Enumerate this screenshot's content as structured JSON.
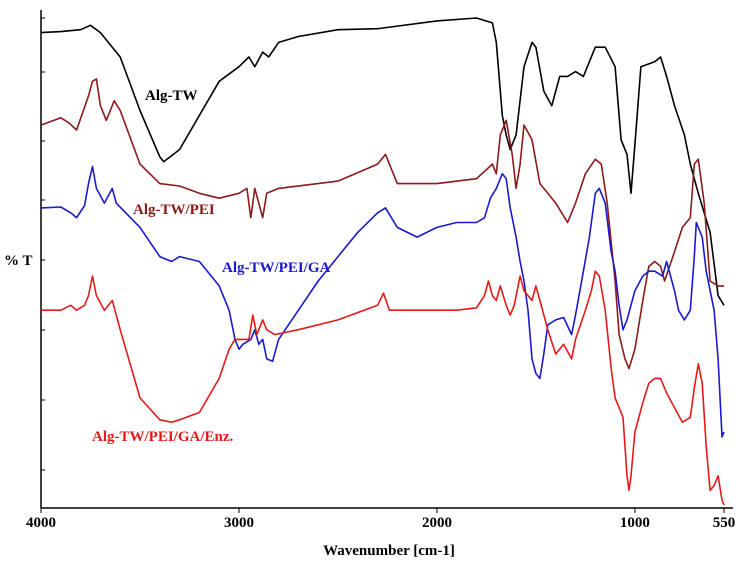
{
  "chart_data": {
    "type": "line",
    "title": "",
    "xlabel": "Wavenumber [cm-1]",
    "ylabel": "% T",
    "xlim": [
      4000,
      550
    ],
    "x_reversed": true,
    "ylim": [
      0,
      100
    ],
    "grid": false,
    "x_ticks": [
      {
        "value": 4000,
        "label": "4000"
      },
      {
        "value": 3000,
        "label": "3000"
      },
      {
        "value": 2000,
        "label": "2000"
      },
      {
        "value": 1000,
        "label": "1000"
      },
      {
        "value": 550,
        "label": "550"
      }
    ],
    "series": [
      {
        "name": "Alg-TW",
        "color": "#000000",
        "points": [
          [
            4000,
            97
          ],
          [
            3900,
            97.2
          ],
          [
            3800,
            97.6
          ],
          [
            3750,
            98.5
          ],
          [
            3700,
            97
          ],
          [
            3600,
            92
          ],
          [
            3500,
            81
          ],
          [
            3400,
            71.5
          ],
          [
            3380,
            70.5
          ],
          [
            3300,
            73
          ],
          [
            3200,
            80
          ],
          [
            3100,
            87
          ],
          [
            3000,
            90
          ],
          [
            2950,
            92
          ],
          [
            2920,
            90
          ],
          [
            2880,
            93
          ],
          [
            2850,
            92
          ],
          [
            2800,
            95
          ],
          [
            2700,
            96.2
          ],
          [
            2500,
            97.6
          ],
          [
            2300,
            97.8
          ],
          [
            2000,
            99.4
          ],
          [
            1800,
            100
          ],
          [
            1720,
            99
          ],
          [
            1700,
            95
          ],
          [
            1670,
            80
          ],
          [
            1650,
            76
          ],
          [
            1630,
            73
          ],
          [
            1600,
            76
          ],
          [
            1560,
            90
          ],
          [
            1520,
            95
          ],
          [
            1500,
            94
          ],
          [
            1460,
            85
          ],
          [
            1420,
            82
          ],
          [
            1380,
            88
          ],
          [
            1340,
            88
          ],
          [
            1300,
            89
          ],
          [
            1260,
            88
          ],
          [
            1200,
            94
          ],
          [
            1150,
            94
          ],
          [
            1100,
            90
          ],
          [
            1070,
            75
          ],
          [
            1040,
            72
          ],
          [
            1020,
            64
          ],
          [
            1000,
            74
          ],
          [
            970,
            90
          ],
          [
            900,
            91
          ],
          [
            870,
            92
          ],
          [
            840,
            88
          ],
          [
            800,
            82
          ],
          [
            750,
            76
          ],
          [
            720,
            70
          ],
          [
            680,
            64
          ],
          [
            620,
            56
          ],
          [
            580,
            43
          ],
          [
            550,
            41
          ]
        ]
      },
      {
        "name": "Alg-TW/PEI",
        "color": "#8b1a1a",
        "points": [
          [
            4000,
            78
          ],
          [
            3900,
            79.5
          ],
          [
            3860,
            78.5
          ],
          [
            3820,
            77
          ],
          [
            3760,
            84
          ],
          [
            3740,
            87
          ],
          [
            3720,
            87.5
          ],
          [
            3700,
            82
          ],
          [
            3670,
            79
          ],
          [
            3630,
            83
          ],
          [
            3600,
            81
          ],
          [
            3500,
            70
          ],
          [
            3400,
            66
          ],
          [
            3300,
            65.5
          ],
          [
            3200,
            64
          ],
          [
            3100,
            63
          ],
          [
            3000,
            64
          ],
          [
            2960,
            65
          ],
          [
            2940,
            59
          ],
          [
            2920,
            65
          ],
          [
            2880,
            59
          ],
          [
            2860,
            64
          ],
          [
            2800,
            65
          ],
          [
            2500,
            66.5
          ],
          [
            2300,
            70
          ],
          [
            2260,
            72
          ],
          [
            2200,
            66
          ],
          [
            2000,
            66
          ],
          [
            1800,
            67
          ],
          [
            1720,
            70
          ],
          [
            1700,
            68
          ],
          [
            1680,
            76
          ],
          [
            1650,
            79
          ],
          [
            1620,
            72
          ],
          [
            1600,
            65
          ],
          [
            1580,
            70
          ],
          [
            1560,
            78
          ],
          [
            1520,
            75
          ],
          [
            1480,
            66
          ],
          [
            1440,
            64
          ],
          [
            1400,
            62
          ],
          [
            1340,
            58
          ],
          [
            1300,
            62
          ],
          [
            1250,
            68
          ],
          [
            1200,
            71
          ],
          [
            1170,
            70
          ],
          [
            1140,
            62
          ],
          [
            1100,
            46
          ],
          [
            1080,
            35
          ],
          [
            1050,
            30
          ],
          [
            1030,
            28
          ],
          [
            1000,
            32
          ],
          [
            960,
            42
          ],
          [
            930,
            49
          ],
          [
            900,
            50
          ],
          [
            870,
            49
          ],
          [
            850,
            46
          ],
          [
            800,
            52
          ],
          [
            760,
            57
          ],
          [
            720,
            59
          ],
          [
            700,
            70
          ],
          [
            680,
            71
          ],
          [
            650,
            62
          ],
          [
            620,
            46
          ],
          [
            580,
            45
          ],
          [
            550,
            45
          ]
        ]
      },
      {
        "name": "Alg-TW/PEI/GA",
        "color": "#1a1acc",
        "points": [
          [
            4000,
            61
          ],
          [
            3900,
            61.2
          ],
          [
            3850,
            60
          ],
          [
            3820,
            59
          ],
          [
            3780,
            61.5
          ],
          [
            3760,
            66
          ],
          [
            3740,
            69.5
          ],
          [
            3720,
            65
          ],
          [
            3680,
            62
          ],
          [
            3640,
            65
          ],
          [
            3620,
            62
          ],
          [
            3500,
            57
          ],
          [
            3400,
            51
          ],
          [
            3340,
            50
          ],
          [
            3300,
            51
          ],
          [
            3200,
            50
          ],
          [
            3100,
            45
          ],
          [
            3050,
            40
          ],
          [
            3020,
            34
          ],
          [
            3000,
            32
          ],
          [
            2980,
            33
          ],
          [
            2940,
            34
          ],
          [
            2920,
            36
          ],
          [
            2900,
            33
          ],
          [
            2880,
            34
          ],
          [
            2860,
            30
          ],
          [
            2830,
            29.5
          ],
          [
            2800,
            34
          ],
          [
            2700,
            40
          ],
          [
            2600,
            46
          ],
          [
            2500,
            51
          ],
          [
            2400,
            56
          ],
          [
            2300,
            60
          ],
          [
            2260,
            61
          ],
          [
            2200,
            57
          ],
          [
            2100,
            55
          ],
          [
            2000,
            57
          ],
          [
            1900,
            58
          ],
          [
            1800,
            58
          ],
          [
            1760,
            59
          ],
          [
            1730,
            63
          ],
          [
            1700,
            65
          ],
          [
            1680,
            67
          ],
          [
            1670,
            68
          ],
          [
            1650,
            67
          ],
          [
            1630,
            61
          ],
          [
            1600,
            55
          ],
          [
            1580,
            50
          ],
          [
            1560,
            46
          ],
          [
            1540,
            40
          ],
          [
            1520,
            30
          ],
          [
            1500,
            27
          ],
          [
            1480,
            26
          ],
          [
            1460,
            31
          ],
          [
            1440,
            37
          ],
          [
            1400,
            38
          ],
          [
            1360,
            38.5
          ],
          [
            1320,
            35
          ],
          [
            1300,
            39
          ],
          [
            1260,
            48
          ],
          [
            1230,
            55
          ],
          [
            1200,
            64
          ],
          [
            1180,
            65
          ],
          [
            1150,
            62
          ],
          [
            1120,
            52
          ],
          [
            1100,
            48
          ],
          [
            1080,
            41
          ],
          [
            1060,
            36
          ],
          [
            1040,
            38
          ],
          [
            1000,
            44
          ],
          [
            960,
            47
          ],
          [
            930,
            48
          ],
          [
            900,
            48
          ],
          [
            860,
            47
          ],
          [
            840,
            50
          ],
          [
            800,
            44
          ],
          [
            780,
            40
          ],
          [
            750,
            38
          ],
          [
            720,
            40
          ],
          [
            700,
            51
          ],
          [
            690,
            58
          ],
          [
            660,
            55
          ],
          [
            640,
            48
          ],
          [
            600,
            40
          ],
          [
            580,
            30
          ],
          [
            560,
            14
          ],
          [
            550,
            15
          ]
        ]
      },
      {
        "name": "Alg-TW/PEI/GA/Enz.",
        "color": "#e41a1a",
        "points": [
          [
            4000,
            40
          ],
          [
            3900,
            40
          ],
          [
            3850,
            41
          ],
          [
            3820,
            40
          ],
          [
            3780,
            41
          ],
          [
            3760,
            43
          ],
          [
            3740,
            47
          ],
          [
            3720,
            43
          ],
          [
            3680,
            40
          ],
          [
            3640,
            42
          ],
          [
            3600,
            36
          ],
          [
            3500,
            22
          ],
          [
            3400,
            17.5
          ],
          [
            3340,
            17
          ],
          [
            3300,
            17.5
          ],
          [
            3200,
            19
          ],
          [
            3100,
            26
          ],
          [
            3050,
            32
          ],
          [
            3020,
            34
          ],
          [
            2990,
            34
          ],
          [
            2950,
            34
          ],
          [
            2930,
            39
          ],
          [
            2910,
            35
          ],
          [
            2880,
            38
          ],
          [
            2860,
            36
          ],
          [
            2820,
            35
          ],
          [
            2700,
            36
          ],
          [
            2500,
            38
          ],
          [
            2300,
            41
          ],
          [
            2270,
            43.5
          ],
          [
            2240,
            40
          ],
          [
            2100,
            40
          ],
          [
            2000,
            40
          ],
          [
            1900,
            40
          ],
          [
            1800,
            40.5
          ],
          [
            1760,
            43
          ],
          [
            1740,
            46
          ],
          [
            1720,
            43
          ],
          [
            1700,
            42
          ],
          [
            1680,
            45
          ],
          [
            1650,
            41
          ],
          [
            1630,
            39
          ],
          [
            1610,
            41
          ],
          [
            1580,
            47
          ],
          [
            1560,
            44
          ],
          [
            1520,
            42
          ],
          [
            1500,
            45
          ],
          [
            1480,
            42
          ],
          [
            1440,
            36
          ],
          [
            1400,
            31
          ],
          [
            1360,
            33
          ],
          [
            1320,
            30
          ],
          [
            1300,
            34
          ],
          [
            1250,
            40
          ],
          [
            1220,
            44
          ],
          [
            1200,
            48
          ],
          [
            1180,
            47
          ],
          [
            1150,
            40
          ],
          [
            1120,
            28
          ],
          [
            1100,
            22
          ],
          [
            1080,
            20
          ],
          [
            1060,
            18
          ],
          [
            1040,
            6
          ],
          [
            1030,
            3
          ],
          [
            1020,
            6
          ],
          [
            1000,
            15
          ],
          [
            960,
            21
          ],
          [
            930,
            25
          ],
          [
            900,
            26
          ],
          [
            870,
            26
          ],
          [
            840,
            23
          ],
          [
            800,
            20
          ],
          [
            760,
            17
          ],
          [
            720,
            18
          ],
          [
            700,
            24
          ],
          [
            680,
            29
          ],
          [
            660,
            25
          ],
          [
            640,
            12
          ],
          [
            620,
            3
          ],
          [
            600,
            4
          ],
          [
            580,
            6
          ],
          [
            560,
            1
          ],
          [
            550,
            0
          ]
        ]
      }
    ]
  }
}
